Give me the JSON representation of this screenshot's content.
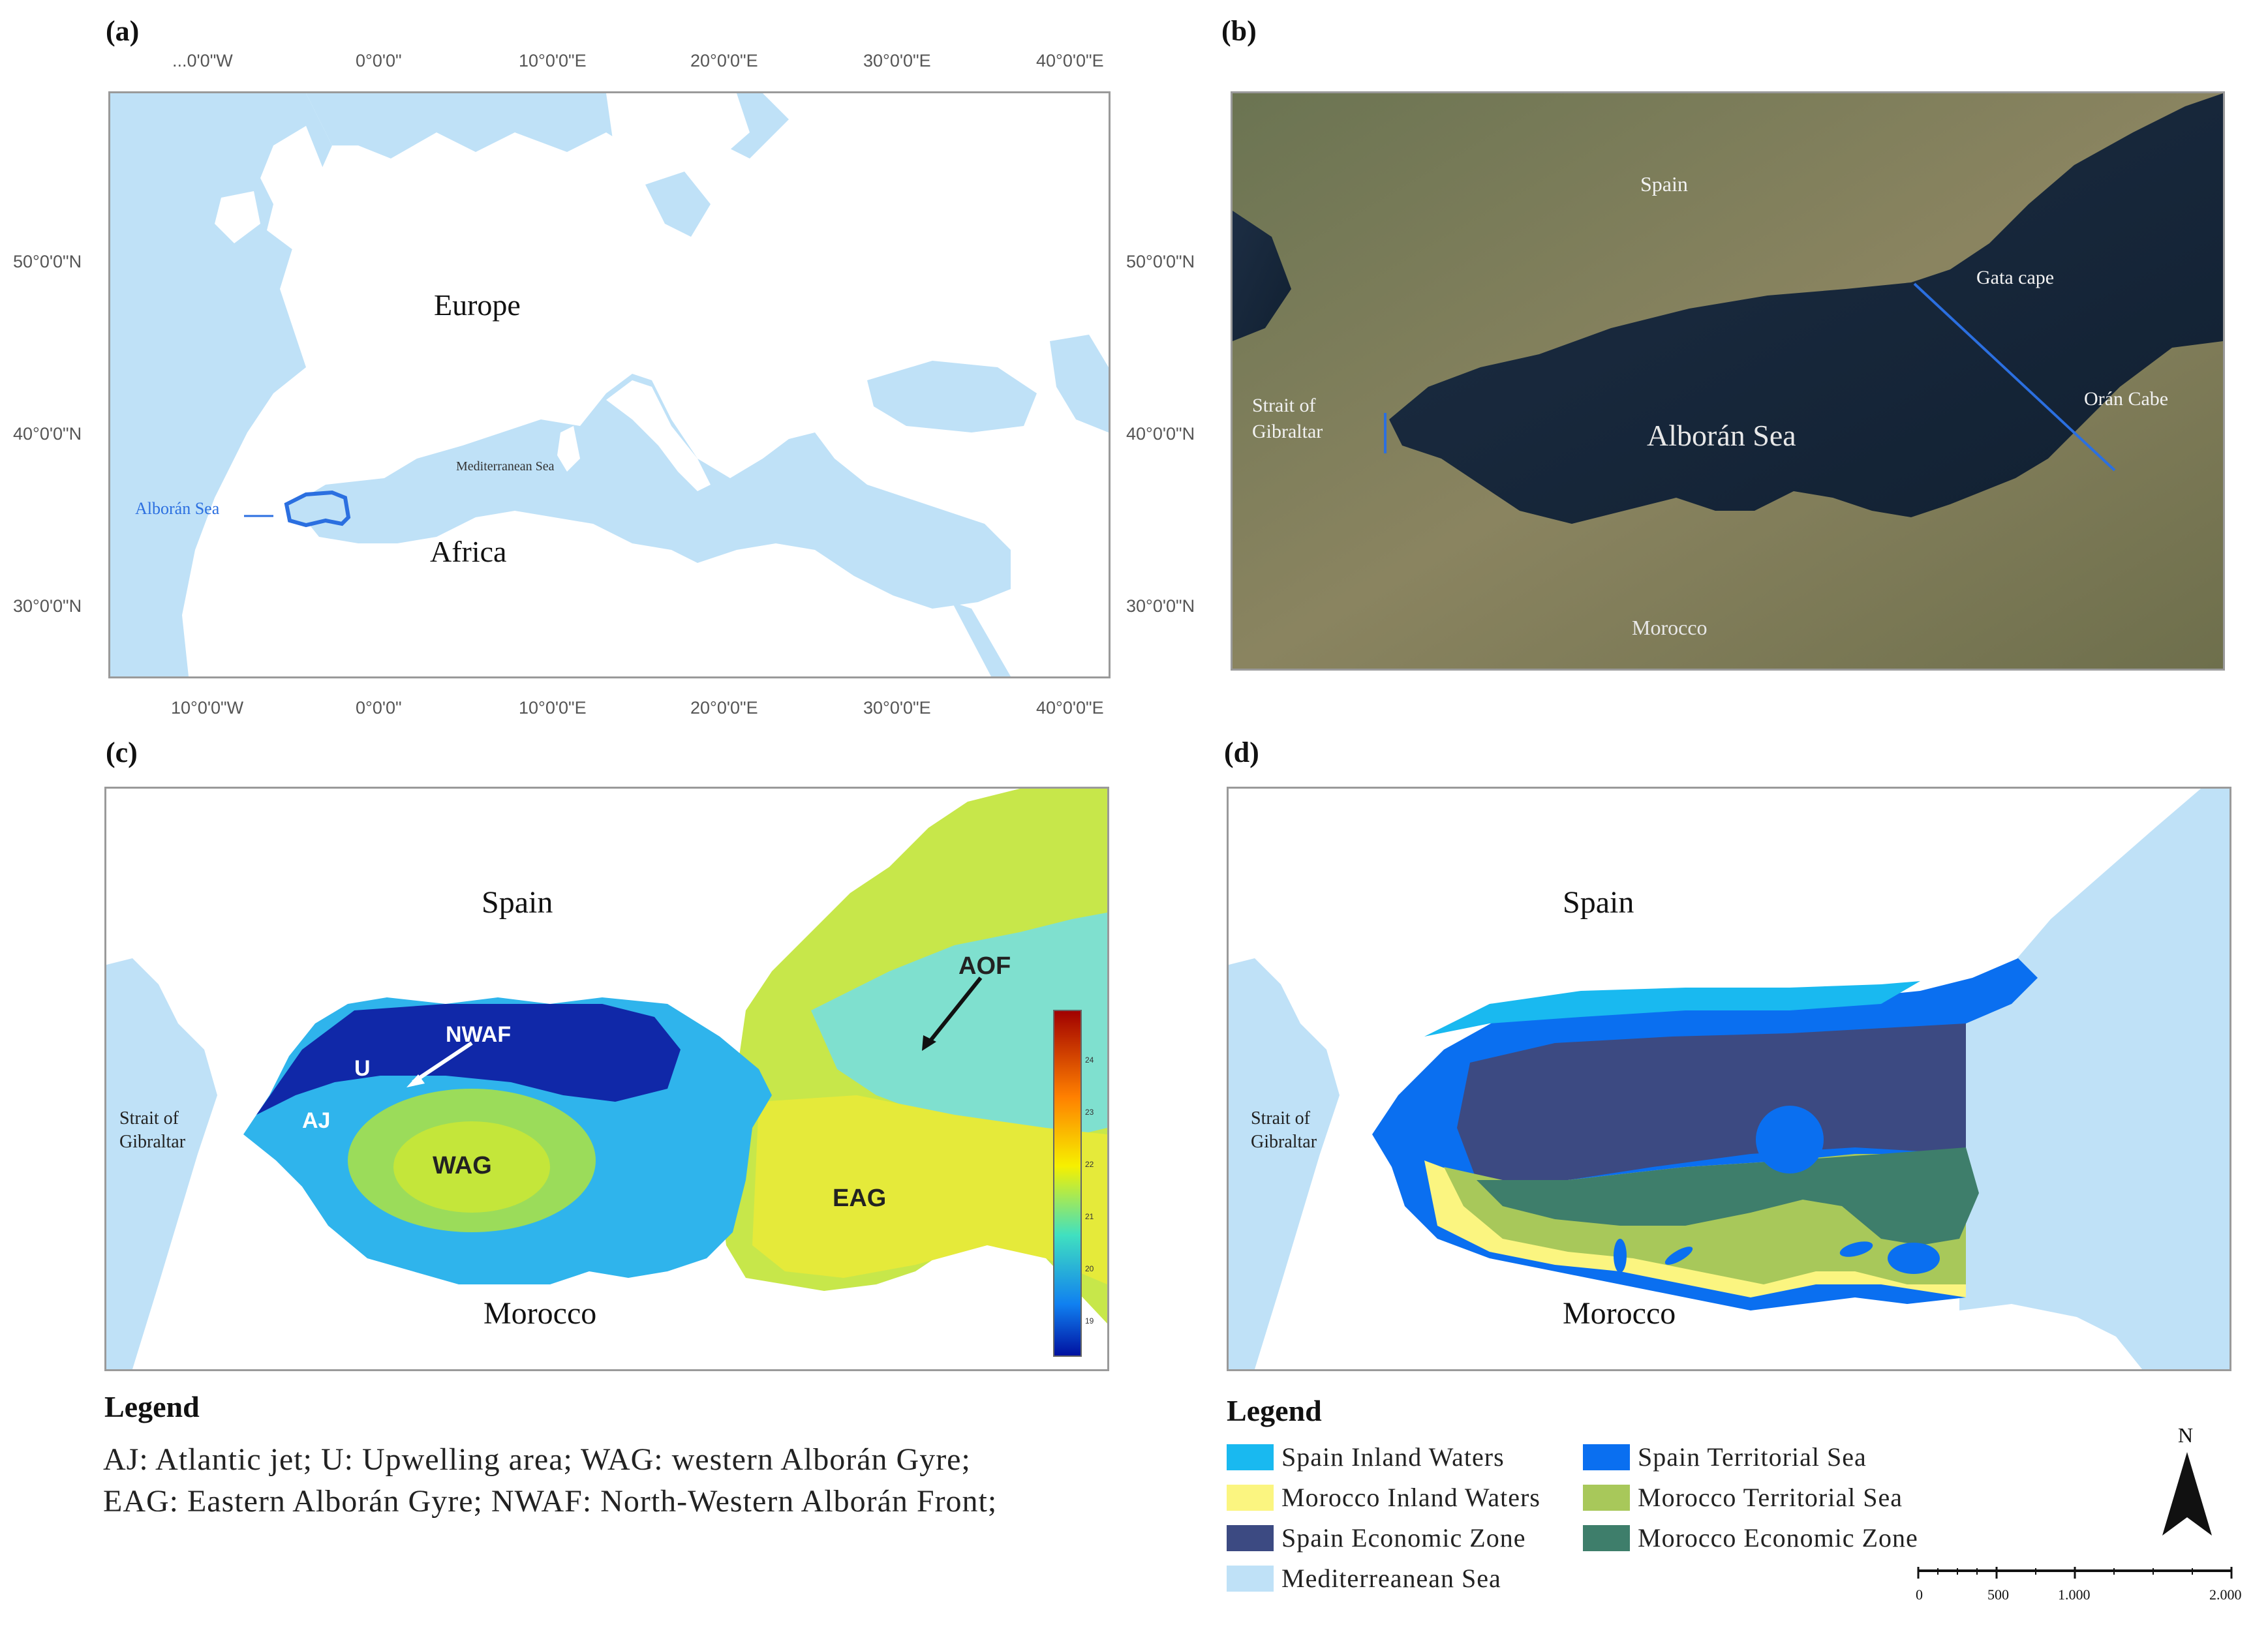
{
  "panels": {
    "a": {
      "label": "(a)"
    },
    "b": {
      "label": "(b)"
    },
    "c": {
      "label": "(c)"
    },
    "d": {
      "label": "(d)"
    }
  },
  "panel_a": {
    "top_ticks": [
      "...0'0\"W",
      "0°0'0\"",
      "10°0'0\"E",
      "20°0'0\"E",
      "30°0'0\"E",
      "40°0'0\"E"
    ],
    "bottom_ticks": [
      "10°0'0\"W",
      "0°0'0\"",
      "10°0'0\"E",
      "20°0'0\"E",
      "30°0'0\"E",
      "40°0'0\"E"
    ],
    "left_ticks": [
      "50°0'0\"N",
      "40°0'0\"N",
      "30°0'0\"N"
    ],
    "right_ticks": [
      "50°0'0\"N",
      "40°0'0\"N",
      "30°0'0\"N"
    ],
    "labels": {
      "europe": "Europe",
      "africa": "Africa",
      "mediterranean": "Mediterranean Sea",
      "alboran": "Alborán Sea"
    }
  },
  "panel_b": {
    "labels": {
      "spain": "Spain",
      "gata": "Gata cape",
      "strait": "Strait of",
      "strait2": "Gibraltar",
      "alboran": "Alborán Sea",
      "oran": "Orán Cabe",
      "morocco": "Morocco"
    }
  },
  "panel_c": {
    "labels": {
      "spain": "Spain",
      "morocco": "Morocco",
      "strait": "Strait of",
      "strait2": "Gibraltar",
      "nwaf": "NWAF",
      "u": "U",
      "aj": "AJ",
      "wag": "WAG",
      "eag": "EAG",
      "aof": "AOF"
    },
    "colorbar_ticks": [
      "24",
      "23",
      "22",
      "21",
      "20",
      "19"
    ]
  },
  "panel_d": {
    "labels": {
      "spain": "Spain",
      "morocco": "Morocco",
      "strait": "Strait of",
      "strait2": "Gibraltar"
    },
    "north": "N",
    "scale_ticks": [
      "0",
      "500",
      "1.000",
      "2.000"
    ]
  },
  "legend_c": {
    "title": "Legend",
    "line1": "AJ: Atlantic jet; U: Upwelling area; WAG: western Alborán Gyre;",
    "line2": "EAG: Eastern Alborán Gyre; NWAF: North-Western Alborán Front;"
  },
  "legend_d": {
    "title": "Legend",
    "items": [
      {
        "label": "Spain Inland Waters",
        "color": "#19b9f0"
      },
      {
        "label": "Spain Territorial Sea",
        "color": "#0a6ff0"
      },
      {
        "label": "Morocco Inland Waters",
        "color": "#fbf580"
      },
      {
        "label": "Morocco Territorial Sea",
        "color": "#a8c85a"
      },
      {
        "label": "Spain Economic Zone",
        "color": "#3c4a82"
      },
      {
        "label": "Morocco Economic Zone",
        "color": "#3e7e6b"
      },
      {
        "label": "Mediterreanean Sea",
        "color": "#bfe1f7"
      }
    ]
  },
  "colors": {
    "land_light": "#ffffff",
    "sea_light": "#bfe1f7",
    "satellite_sea": "#16263a",
    "alboran_outline": "#2b6fe0"
  }
}
